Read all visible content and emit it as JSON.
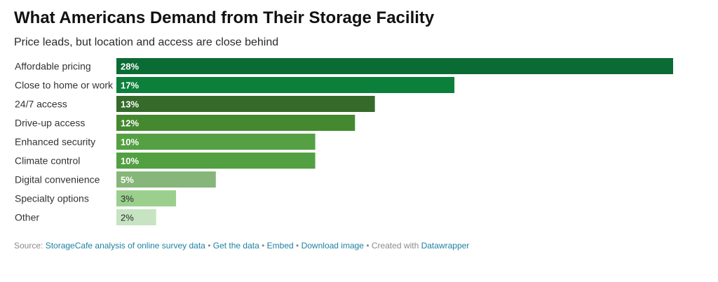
{
  "chart_data": {
    "type": "bar",
    "orientation": "horizontal",
    "title": "What Americans Demand from Their Storage Facility",
    "subtitle": "Price leads, but location and access are close behind",
    "categories": [
      "Affordable pricing",
      "Close to home or work",
      "24/7 access",
      "Drive-up access",
      "Enhanced security",
      "Climate control",
      "Digital convenience",
      "Specialty options",
      "Other"
    ],
    "values": [
      28,
      17,
      13,
      12,
      10,
      10,
      5,
      3,
      2
    ],
    "value_labels": [
      "28%",
      "17%",
      "13%",
      "12%",
      "10%",
      "10%",
      "5%",
      "3%",
      "2%"
    ],
    "unit": "%",
    "xlim": [
      0,
      28
    ],
    "grid": false,
    "colors": [
      "#0b6b34",
      "#0c7f3b",
      "#356a2b",
      "#44892f",
      "#55a043",
      "#52a042",
      "#86b679",
      "#9bcf8e",
      "#c6e4c1"
    ],
    "label_colors": [
      "#ffffff",
      "#ffffff",
      "#ffffff",
      "#ffffff",
      "#ffffff",
      "#ffffff",
      "#ffffff",
      "#2a2a2a",
      "#2a2a2a"
    ]
  },
  "footer": {
    "source_prefix": "Source:",
    "source_link": "StorageCafe analysis of online survey data",
    "get_data": "Get the data",
    "embed": "Embed",
    "download": "Download image",
    "created_with": "Created with",
    "datawrapper": "Datawrapper",
    "separator": "•"
  }
}
